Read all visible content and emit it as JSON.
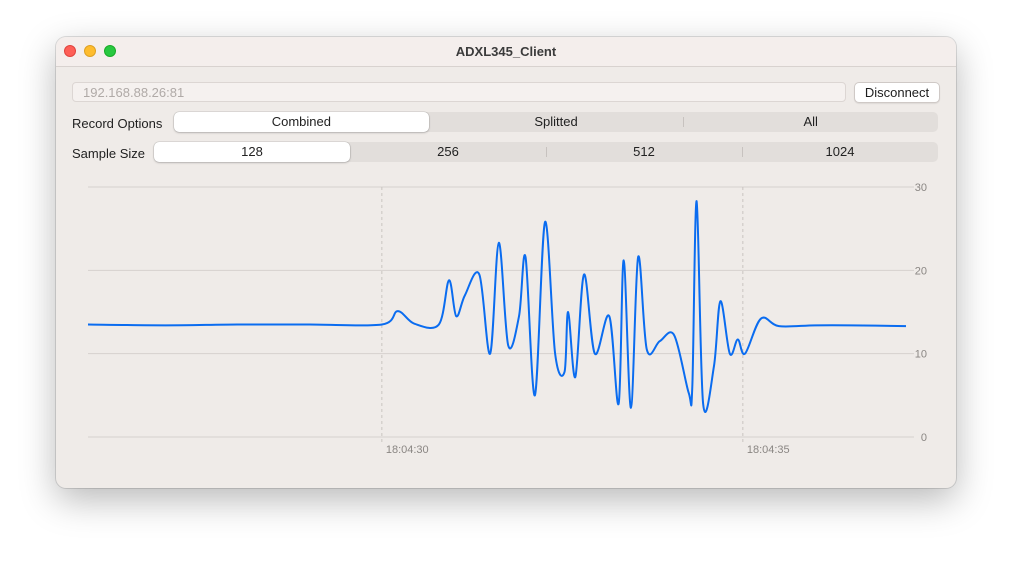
{
  "window": {
    "title": "ADXL345_Client"
  },
  "connection": {
    "address_placeholder": "192.168.88.26:81",
    "disconnect_label": "Disconnect"
  },
  "record_options": {
    "label": "Record Options",
    "options": [
      "Combined",
      "Splitted",
      "All"
    ],
    "selected": "Combined"
  },
  "sample_size": {
    "label": "Sample Size",
    "options": [
      "128",
      "256",
      "512",
      "1024"
    ],
    "selected": "128"
  },
  "colors": {
    "series": "#0a6cf0",
    "grid": "#d6d1ce"
  },
  "chart_data": {
    "type": "line",
    "title": "",
    "xlabel": "",
    "ylabel": "",
    "ylim": [
      0,
      30
    ],
    "yticks": [
      "30",
      "20",
      "10",
      "0"
    ],
    "x_tick_labels": [
      "18:04:30",
      "18:04:35"
    ],
    "x_tick_seconds": [
      0,
      5
    ],
    "xlim_seconds": [
      -4.07,
      7.26
    ],
    "grid": true,
    "series": [
      {
        "values": [
          [
            -4.07,
            13.5
          ],
          [
            -3.0,
            13.4
          ],
          [
            -2.0,
            13.5
          ],
          [
            -1.0,
            13.5
          ],
          [
            0.0,
            13.5
          ],
          [
            0.22,
            15.1
          ],
          [
            0.45,
            13.6
          ],
          [
            0.79,
            13.5
          ],
          [
            0.93,
            18.8
          ],
          [
            1.03,
            14.5
          ],
          [
            1.15,
            17.0
          ],
          [
            1.35,
            19.5
          ],
          [
            1.5,
            10.0
          ],
          [
            1.62,
            23.3
          ],
          [
            1.75,
            11.0
          ],
          [
            1.9,
            14.5
          ],
          [
            1.99,
            21.6
          ],
          [
            2.12,
            5.0
          ],
          [
            2.26,
            25.8
          ],
          [
            2.4,
            10.0
          ],
          [
            2.53,
            7.8
          ],
          [
            2.58,
            15.0
          ],
          [
            2.68,
            7.2
          ],
          [
            2.8,
            19.5
          ],
          [
            2.95,
            10.0
          ],
          [
            3.15,
            14.5
          ],
          [
            3.28,
            4.0
          ],
          [
            3.35,
            21.2
          ],
          [
            3.45,
            3.5
          ],
          [
            3.55,
            21.6
          ],
          [
            3.67,
            10.5
          ],
          [
            3.85,
            11.5
          ],
          [
            4.05,
            12.2
          ],
          [
            4.25,
            5.3
          ],
          [
            4.3,
            6.0
          ],
          [
            4.36,
            28.3
          ],
          [
            4.45,
            4.0
          ],
          [
            4.6,
            8.5
          ],
          [
            4.69,
            16.3
          ],
          [
            4.82,
            10.0
          ],
          [
            4.93,
            11.7
          ],
          [
            5.03,
            10.0
          ],
          [
            5.25,
            14.2
          ],
          [
            5.5,
            13.3
          ],
          [
            6.0,
            13.4
          ],
          [
            6.5,
            13.4
          ],
          [
            7.26,
            13.3
          ]
        ]
      }
    ]
  }
}
